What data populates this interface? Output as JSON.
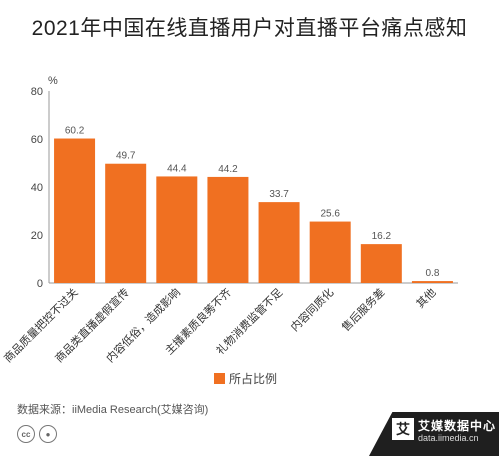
{
  "chart_data": {
    "type": "bar",
    "title": "2021年中国在线直播用户对直播平台痛点感知",
    "ylabel": "%",
    "ylim": [
      0,
      80
    ],
    "yticks": [
      0,
      20,
      40,
      60,
      80
    ],
    "categories": [
      "商品质量把控不过关",
      "商品类直播虚假宣传",
      "内容低俗，造成影响",
      "主播素质良莠不齐",
      "礼物消费监管不足",
      "内容同质化",
      "售后服务差",
      "其他"
    ],
    "series": [
      {
        "name": "所占比例",
        "values": [
          60.2,
          49.7,
          44.4,
          44.2,
          33.7,
          25.6,
          16.2,
          0.8
        ]
      }
    ],
    "legend_position": "bottom",
    "grid": false,
    "bar_color": "#f07021"
  },
  "source_text": "数据来源：iiMedia Research(艾媒咨询)",
  "license_icons": [
    "cc",
    "by"
  ],
  "brand": {
    "logo_char": "艾",
    "name": "艾媒数据中心",
    "url": "data.iimedia.cn"
  }
}
